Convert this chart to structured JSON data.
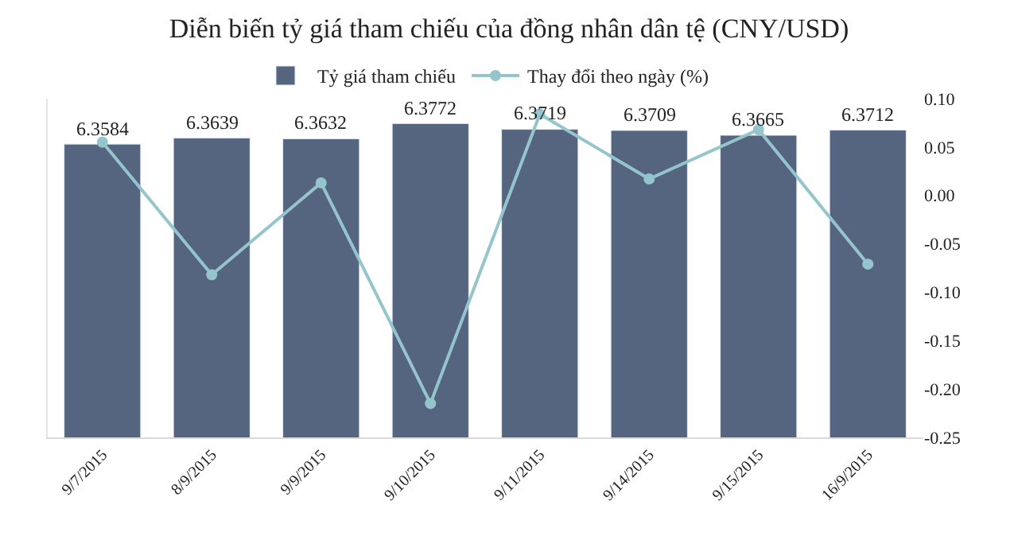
{
  "chart_data": {
    "type": "bar",
    "title": "Diễn biến tỷ giá tham chiếu của đồng nhân dân tệ (CNY/USD)",
    "categories": [
      "9/7/2015",
      "8/9/2015",
      "9/9/2015",
      "9/10/2015",
      "9/11/2015",
      "9/14/2015",
      "9/15/2015",
      "16/9/2015"
    ],
    "series": [
      {
        "name": "Tỷ giá tham chiếu",
        "color": "#56657f",
        "values": [
          6.3584,
          6.3639,
          6.3632,
          6.3772,
          6.3719,
          6.3709,
          6.3665,
          6.3712
        ],
        "value_labels": [
          "6.3584",
          "6.3639",
          "6.3632",
          "6.3772",
          "6.3719",
          "6.3709",
          "6.3665",
          "6.3712"
        ]
      },
      {
        "name": "Thay đổi theo ngày (%)",
        "type": "line",
        "axis": "y2",
        "color": "#95c5cc",
        "marker": "circle",
        "values": [
          0.055,
          -0.082,
          0.013,
          -0.215,
          0.084,
          0.017,
          0.068,
          -0.071
        ]
      }
    ],
    "ylim": [
      6.09,
      6.4
    ],
    "y2lim": [
      -0.25,
      0.1
    ],
    "y2ticks": [
      {
        "value": -0.25,
        "label": "-0.25"
      },
      {
        "value": -0.2,
        "label": "-0.20"
      },
      {
        "value": -0.15,
        "label": "-0.15"
      },
      {
        "value": -0.1,
        "label": "-0.10"
      },
      {
        "value": -0.05,
        "label": "-0.05"
      },
      {
        "value": 0,
        "label": "0.00"
      },
      {
        "value": 0.05,
        "label": "0.05"
      },
      {
        "value": 0.1,
        "label": "0.10"
      }
    ],
    "legend": "top"
  }
}
